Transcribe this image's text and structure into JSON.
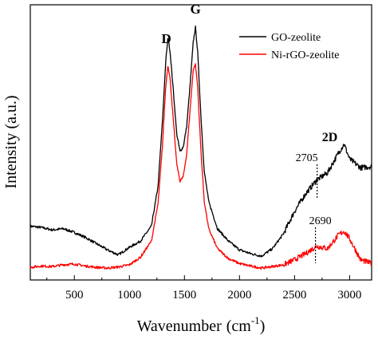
{
  "chart_data": {
    "type": "line",
    "xlabel": "Wavenumber",
    "xlabel_unit": "(cm",
    "xlabel_sup": "-1",
    "xlabel_close": ")",
    "ylabel": "Intensity (a.u.)",
    "xlim": [
      100,
      3200
    ],
    "xticks": [
      500,
      1000,
      1500,
      2000,
      2500,
      3000
    ],
    "y_tick_labels": false,
    "legend": {
      "placement": "top-right"
    },
    "series": [
      {
        "name": "GO-zeolite",
        "color": "#000000",
        "points": [
          [
            100,
            0.2
          ],
          [
            200,
            0.195
          ],
          [
            300,
            0.185
          ],
          [
            400,
            0.19
          ],
          [
            500,
            0.175
          ],
          [
            600,
            0.155
          ],
          [
            700,
            0.13
          ],
          [
            800,
            0.105
          ],
          [
            900,
            0.085
          ],
          [
            1000,
            0.115
          ],
          [
            1100,
            0.14
          ],
          [
            1200,
            0.2
          ],
          [
            1260,
            0.36
          ],
          [
            1300,
            0.62
          ],
          [
            1330,
            0.86
          ],
          [
            1350,
            0.96
          ],
          [
            1370,
            0.9
          ],
          [
            1400,
            0.74
          ],
          [
            1430,
            0.57
          ],
          [
            1460,
            0.5
          ],
          [
            1490,
            0.52
          ],
          [
            1520,
            0.6
          ],
          [
            1550,
            0.76
          ],
          [
            1580,
            0.94
          ],
          [
            1600,
            1.0
          ],
          [
            1620,
            0.9
          ],
          [
            1650,
            0.64
          ],
          [
            1680,
            0.42
          ],
          [
            1720,
            0.3
          ],
          [
            1800,
            0.19
          ],
          [
            1900,
            0.14
          ],
          [
            2000,
            0.105
          ],
          [
            2100,
            0.09
          ],
          [
            2200,
            0.08
          ],
          [
            2300,
            0.11
          ],
          [
            2400,
            0.17
          ],
          [
            2500,
            0.26
          ],
          [
            2600,
            0.33
          ],
          [
            2700,
            0.385
          ],
          [
            2800,
            0.415
          ],
          [
            2900,
            0.495
          ],
          [
            2950,
            0.53
          ],
          [
            3000,
            0.47
          ],
          [
            3100,
            0.435
          ],
          [
            3200,
            0.44
          ]
        ]
      },
      {
        "name": "Ni-rGO-zeolite",
        "color": "#ff0000",
        "points": [
          [
            100,
            0.035
          ],
          [
            200,
            0.04
          ],
          [
            300,
            0.038
          ],
          [
            400,
            0.045
          ],
          [
            500,
            0.048
          ],
          [
            600,
            0.04
          ],
          [
            700,
            0.035
          ],
          [
            800,
            0.032
          ],
          [
            900,
            0.036
          ],
          [
            1000,
            0.045
          ],
          [
            1100,
            0.075
          ],
          [
            1200,
            0.14
          ],
          [
            1260,
            0.29
          ],
          [
            1300,
            0.52
          ],
          [
            1330,
            0.76
          ],
          [
            1350,
            0.85
          ],
          [
            1370,
            0.79
          ],
          [
            1400,
            0.62
          ],
          [
            1430,
            0.45
          ],
          [
            1460,
            0.38
          ],
          [
            1490,
            0.4
          ],
          [
            1520,
            0.49
          ],
          [
            1550,
            0.66
          ],
          [
            1580,
            0.83
          ],
          [
            1600,
            0.85
          ],
          [
            1620,
            0.76
          ],
          [
            1650,
            0.5
          ],
          [
            1680,
            0.3
          ],
          [
            1720,
            0.19
          ],
          [
            1800,
            0.11
          ],
          [
            1900,
            0.07
          ],
          [
            2000,
            0.05
          ],
          [
            2100,
            0.04
          ],
          [
            2200,
            0.032
          ],
          [
            2300,
            0.038
          ],
          [
            2400,
            0.045
          ],
          [
            2500,
            0.065
          ],
          [
            2600,
            0.09
          ],
          [
            2700,
            0.12
          ],
          [
            2800,
            0.11
          ],
          [
            2900,
            0.165
          ],
          [
            2950,
            0.18
          ],
          [
            3000,
            0.15
          ],
          [
            3100,
            0.065
          ],
          [
            3200,
            0.05
          ]
        ]
      }
    ],
    "annotations": [
      {
        "text": "D",
        "x": 1350,
        "bold": true
      },
      {
        "text": "G",
        "x": 1600,
        "bold": true
      },
      {
        "text": "2D",
        "x": 2820,
        "bold": true
      },
      {
        "text": "2705",
        "x": 2705,
        "marker_line": true
      },
      {
        "text": "2690",
        "x": 2690,
        "marker_line": true
      }
    ]
  }
}
